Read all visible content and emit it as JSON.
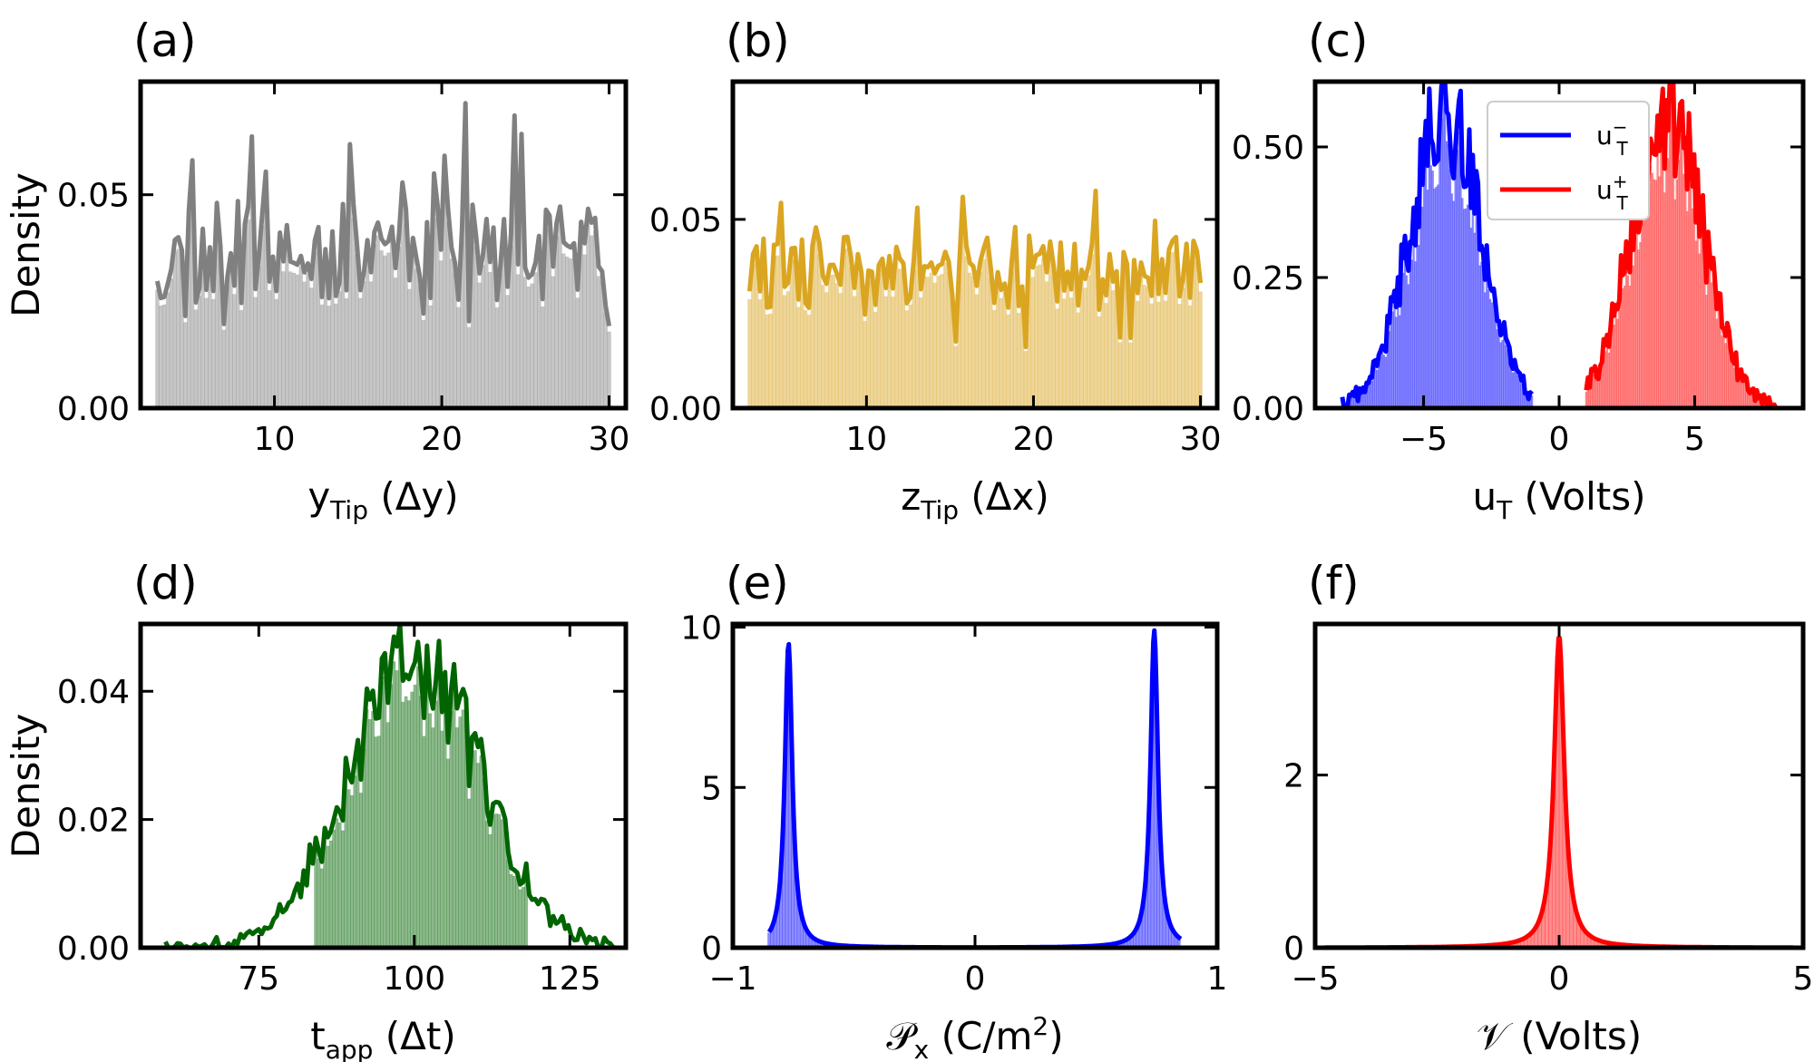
{
  "colors": {
    "a": "#808080",
    "b": "#daa520",
    "c_neg": "#0000ff",
    "c_pos": "#ff0000",
    "d": "#006400",
    "e": "#0000ff",
    "f": "#ff0000"
  },
  "chart_data": [
    {
      "panel": "(a)",
      "type": "histogram-kde",
      "xlabel": {
        "main": "y",
        "sub": "Tip",
        "after": " (Δy)"
      },
      "ylabel": "Density",
      "xlim": [
        2,
        31
      ],
      "ylim": [
        0,
        0.0765
      ],
      "xticks": [
        10,
        20,
        30
      ],
      "xtick_labels": [
        "10",
        "20",
        "30"
      ],
      "yticks": [
        0,
        0.05
      ],
      "ytick_labels": [
        "0.00",
        "0.05"
      ],
      "x_range": [
        3,
        30
      ],
      "bins": 130,
      "seed": 11,
      "base": 0.036,
      "noise": 0.012,
      "spike_prob": 0.13,
      "spike_amp": 0.03,
      "dip_prob": 0.1,
      "dip_amp": 0.015
    },
    {
      "panel": "(b)",
      "type": "histogram-kde",
      "xlabel": {
        "main": "z",
        "sub": "Tip",
        "after": " (Δx)"
      },
      "ylabel": "",
      "xlim": [
        2,
        31
      ],
      "ylim": [
        0,
        0.0865
      ],
      "xticks": [
        10,
        20,
        30
      ],
      "xtick_labels": [
        "10",
        "20",
        "30"
      ],
      "yticks": [
        0,
        0.05
      ],
      "ytick_labels": [
        "0.00",
        "0.05"
      ],
      "x_range": [
        3,
        30
      ],
      "bins": 130,
      "seed": 29,
      "base": 0.036,
      "noise": 0.01,
      "spike_prob": 0.1,
      "spike_amp": 0.025,
      "dip_prob": 0.08,
      "dip_amp": 0.015
    },
    {
      "panel": "(c)",
      "type": "histogram-kde",
      "xlabel": {
        "main": "u",
        "sub": "T",
        "after": " (Volts)"
      },
      "ylabel": "",
      "xlim": [
        -9,
        9
      ],
      "ylim": [
        0,
        0.625
      ],
      "xticks": [
        -5,
        0,
        5
      ],
      "xtick_labels": [
        "−5",
        "0",
        "5"
      ],
      "yticks": [
        0,
        0.25,
        0.5
      ],
      "ytick_labels": [
        "0.00",
        "0.25",
        "0.50"
      ],
      "series": [
        {
          "name": "u_T^-",
          "label_main": "u",
          "label_sub": "T",
          "label_sup": "−",
          "mean": -4.2,
          "sd": 1.3,
          "x_range": [
            -8,
            -1
          ],
          "peak": 0.57,
          "seed": 41
        },
        {
          "name": "u_T^+",
          "label_main": "u",
          "label_sub": "T",
          "label_sup": "+",
          "mean": 4.0,
          "sd": 1.3,
          "x_range": [
            1,
            8
          ],
          "peak": 0.57,
          "seed": 57
        }
      ],
      "legend": "top-right"
    },
    {
      "panel": "(d)",
      "type": "histogram-kde",
      "xlabel": {
        "main": "t",
        "sub": "app",
        "after": " (Δt)"
      },
      "ylabel": "Density",
      "xlim": [
        56,
        134
      ],
      "ylim": [
        0,
        0.0505
      ],
      "xticks": [
        75,
        100,
        125
      ],
      "xtick_labels": [
        "75",
        "100",
        "125"
      ],
      "yticks": [
        0,
        0.02,
        0.04
      ],
      "ytick_labels": [
        "0.00",
        "0.02",
        "0.04"
      ],
      "mean": 100,
      "sd": 10.5,
      "x_range": [
        60,
        132
      ],
      "peak": 0.045,
      "seed": 73
    },
    {
      "panel": "(e)",
      "type": "histogram-kde",
      "xlabel": {
        "main": "𝒫",
        "sub": "x",
        "after": " (C/m",
        "sup": "2",
        "close": ")"
      },
      "ylabel": "",
      "xlim": [
        -1,
        1
      ],
      "ylim": [
        0,
        10.1
      ],
      "xticks": [
        -1,
        0,
        1
      ],
      "xtick_labels": [
        "−1",
        "0",
        "1"
      ],
      "yticks": [
        0,
        5,
        10
      ],
      "ytick_labels": [
        "0",
        "5",
        "10"
      ],
      "peaks": [
        {
          "x": -0.77,
          "height": 9.5
        },
        {
          "x": 0.74,
          "height": 9.9
        }
      ],
      "x_range": [
        -0.85,
        0.85
      ]
    },
    {
      "panel": "(f)",
      "type": "histogram-kde",
      "xlabel": {
        "main": "𝒱",
        "sub": "",
        "after": " (Volts)"
      },
      "ylabel": "",
      "xlim": [
        -5,
        5
      ],
      "ylim": [
        0,
        3.75
      ],
      "xticks": [
        -5,
        0,
        5
      ],
      "xtick_labels": [
        "−5",
        "0",
        "5"
      ],
      "yticks": [
        0,
        2
      ],
      "ytick_labels": [
        "0",
        "2"
      ],
      "peak": 3.62,
      "center": 0.0,
      "x_range": [
        -4.8,
        4.8
      ]
    }
  ]
}
